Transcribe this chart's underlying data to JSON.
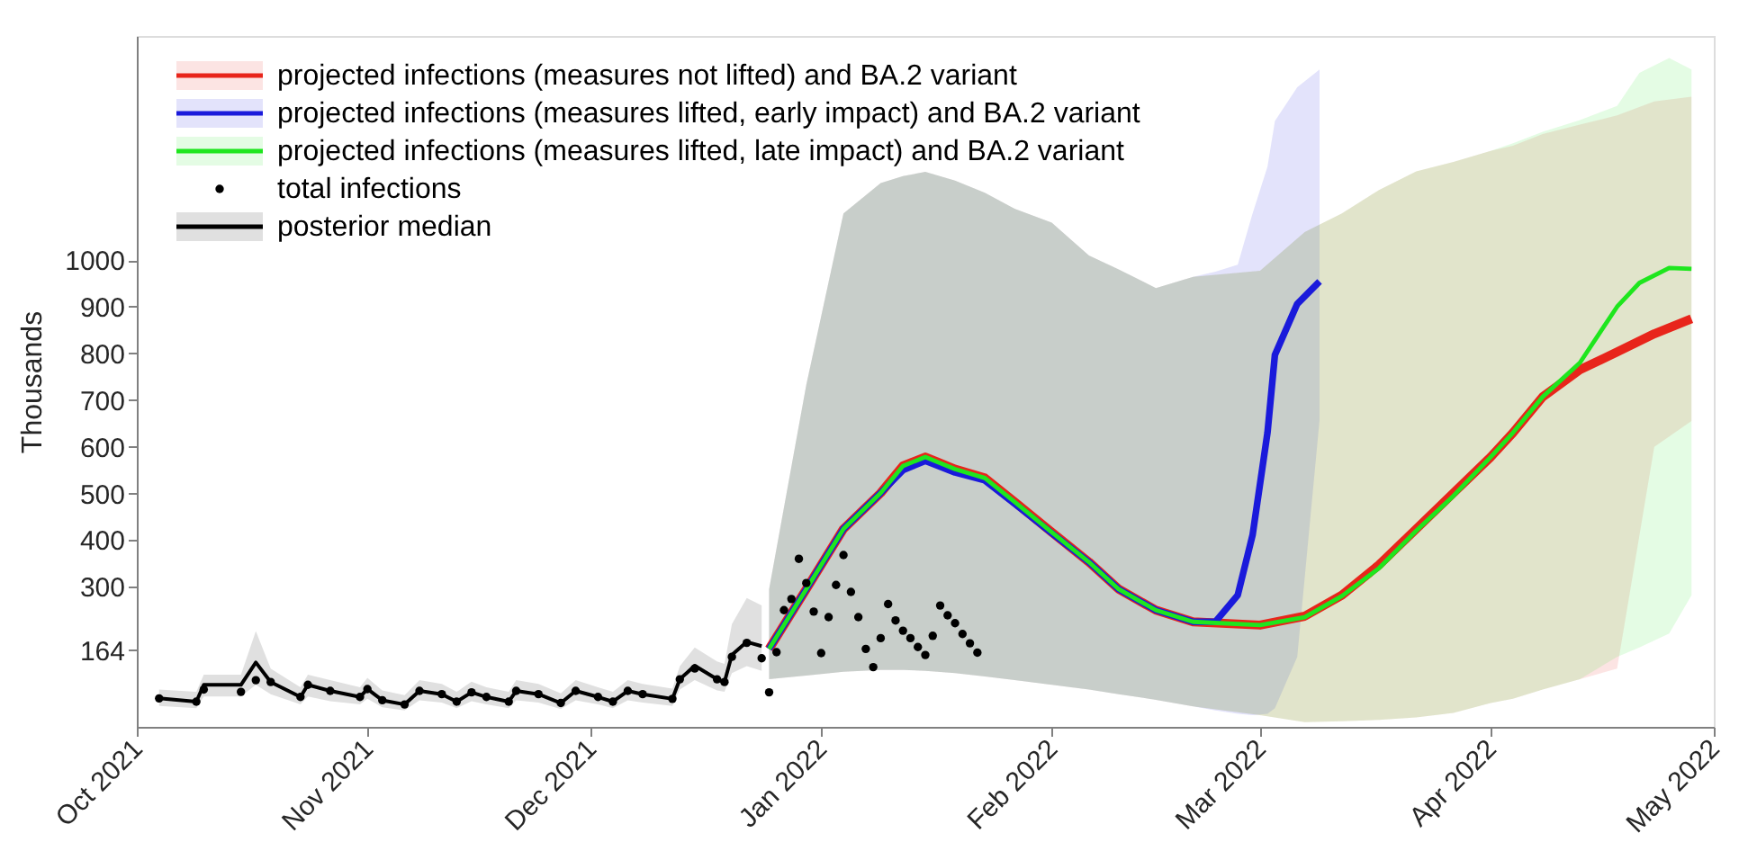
{
  "chart_data": {
    "type": "line",
    "ylabel": "Thousands",
    "legend": "top left",
    "grid": false,
    "xlim": [
      "2021-10-01",
      "2022-05-01"
    ],
    "xticks": [
      {
        "value": "2021-10-01",
        "label": "Oct 2021"
      },
      {
        "value": "2021-11-01",
        "label": "Nov 2021"
      },
      {
        "value": "2021-12-01",
        "label": "Dec 2021"
      },
      {
        "value": "2022-01-01",
        "label": "Jan 2022"
      },
      {
        "value": "2022-02-01",
        "label": "Feb 2022"
      },
      {
        "value": "2022-03-01",
        "label": "Mar 2022"
      },
      {
        "value": "2022-04-01",
        "label": "Apr 2022"
      },
      {
        "value": "2022-05-01",
        "label": "May 2022"
      }
    ],
    "ylim": [
      0,
      1480
    ],
    "yticks": [
      164,
      300,
      400,
      500,
      600,
      700,
      800,
      900,
      1000
    ],
    "series": [
      {
        "name": "projected infections (measures not lifted) and BA.2 variant",
        "type": "line",
        "color": "#e8251b",
        "x": [
          "2021-12-25",
          "2021-12-30",
          "2022-01-04",
          "2022-01-09",
          "2022-01-12",
          "2022-01-15",
          "2022-01-19",
          "2022-01-23",
          "2022-01-27",
          "2022-02-01",
          "2022-02-06",
          "2022-02-10",
          "2022-02-15",
          "2022-02-20",
          "2022-03-01",
          "2022-03-07",
          "2022-03-12",
          "2022-03-17",
          "2022-03-22",
          "2022-03-27",
          "2022-04-01",
          "2022-04-04",
          "2022-04-08",
          "2022-04-13",
          "2022-04-18",
          "2022-04-23",
          "2022-04-28"
        ],
        "values": [
          167,
          295,
          424,
          501,
          559,
          578,
          552,
          533,
          482,
          417,
          353,
          295,
          250,
          225,
          218,
          237,
          282,
          347,
          424,
          501,
          578,
          630,
          707,
          765,
          803,
          842,
          874
        ],
        "lower": [
          102,
          110,
          118,
          122,
          122,
          120,
          115,
          108,
          100,
          90,
          80,
          70,
          58,
          44,
          25,
          10,
          12,
          15,
          20,
          30,
          51,
          60,
          80,
          102,
          125,
          600,
          655
        ],
        "upper": [
          295,
          733,
          1100,
          1165,
          1180,
          1189,
          1170,
          1144,
          1110,
          1080,
          1010,
          980,
          940,
          964,
          977,
          1060,
          1100,
          1150,
          1190,
          1210,
          1234,
          1245,
          1270,
          1290,
          1310,
          1340,
          1350
        ]
      },
      {
        "name": "projected infections (measures lifted, early impact) and BA.2 variant",
        "type": "line",
        "color": "#1a1adb",
        "x": [
          "2021-12-25",
          "2021-12-30",
          "2022-01-04",
          "2022-01-09",
          "2022-01-12",
          "2022-01-15",
          "2022-01-19",
          "2022-01-23",
          "2022-01-27",
          "2022-02-01",
          "2022-02-06",
          "2022-02-10",
          "2022-02-15",
          "2022-02-20",
          "2022-02-23",
          "2022-02-26",
          "2022-02-28",
          "2022-03-02",
          "2022-03-03",
          "2022-03-06",
          "2022-03-09"
        ],
        "values": [
          167,
          295,
          424,
          501,
          550,
          570,
          545,
          528,
          478,
          415,
          353,
          295,
          250,
          225,
          225,
          282,
          411,
          630,
          797,
          906,
          954
        ],
        "lower": [
          102,
          110,
          118,
          122,
          122,
          120,
          115,
          108,
          100,
          90,
          80,
          70,
          58,
          44,
          35,
          28,
          25,
          28,
          40,
          150,
          657
        ],
        "upper": [
          295,
          733,
          1100,
          1165,
          1180,
          1189,
          1170,
          1144,
          1110,
          1080,
          1010,
          980,
          940,
          964,
          975,
          990,
          1100,
          1200,
          1298,
          1370,
          1408
        ]
      },
      {
        "name": "projected infections (measures lifted, late impact) and BA.2 variant",
        "type": "line",
        "color": "#1ee61e",
        "x": [
          "2021-12-25",
          "2021-12-30",
          "2022-01-04",
          "2022-01-09",
          "2022-01-12",
          "2022-01-15",
          "2022-01-19",
          "2022-01-23",
          "2022-01-27",
          "2022-02-01",
          "2022-02-06",
          "2022-02-10",
          "2022-02-15",
          "2022-02-20",
          "2022-03-01",
          "2022-03-07",
          "2022-03-12",
          "2022-03-17",
          "2022-03-22",
          "2022-03-27",
          "2022-04-01",
          "2022-04-04",
          "2022-04-08",
          "2022-04-13",
          "2022-04-18",
          "2022-04-21",
          "2022-04-25",
          "2022-04-28"
        ],
        "values": [
          167,
          295,
          424,
          501,
          559,
          578,
          552,
          533,
          482,
          417,
          353,
          295,
          250,
          225,
          218,
          235,
          280,
          340,
          420,
          495,
          578,
          630,
          707,
          780,
          900,
          951,
          983,
          981
        ],
        "lower": [
          102,
          110,
          118,
          122,
          122,
          120,
          115,
          108,
          100,
          90,
          80,
          70,
          58,
          44,
          25,
          10,
          12,
          15,
          20,
          30,
          51,
          60,
          80,
          102,
          150,
          170,
          200,
          282
        ],
        "upper": [
          295,
          733,
          1100,
          1165,
          1180,
          1189,
          1170,
          1144,
          1110,
          1080,
          1010,
          980,
          940,
          964,
          977,
          1060,
          1100,
          1150,
          1190,
          1210,
          1234,
          1250,
          1275,
          1300,
          1330,
          1401,
          1433,
          1408
        ]
      },
      {
        "name": "total infections",
        "type": "scatter",
        "marker": "circle",
        "color": "#000000",
        "x": [
          "2021-10-04",
          "2021-10-09",
          "2021-10-10",
          "2021-10-15",
          "2021-10-17",
          "2021-10-19",
          "2021-10-23",
          "2021-10-24",
          "2021-10-27",
          "2021-10-31",
          "2021-11-01",
          "2021-11-03",
          "2021-11-06",
          "2021-11-08",
          "2021-11-11",
          "2021-11-13",
          "2021-11-15",
          "2021-11-17",
          "2021-11-20",
          "2021-11-21",
          "2021-11-24",
          "2021-11-27",
          "2021-11-29",
          "2021-12-02",
          "2021-12-04",
          "2021-12-06",
          "2021-12-08",
          "2021-12-12",
          "2021-12-13",
          "2021-12-15",
          "2021-12-18",
          "2021-12-19",
          "2021-12-20",
          "2021-12-22",
          "2021-12-24",
          "2021-12-25",
          "2021-12-26",
          "2021-12-27",
          "2021-12-28",
          "2021-12-29",
          "2021-12-30",
          "2021-12-31",
          "2022-01-01",
          "2022-01-02",
          "2022-01-03",
          "2022-01-04",
          "2022-01-05",
          "2022-01-06",
          "2022-01-07",
          "2022-01-08",
          "2022-01-09",
          "2022-01-10",
          "2022-01-11",
          "2022-01-12",
          "2022-01-13",
          "2022-01-14",
          "2022-01-15",
          "2022-01-16",
          "2022-01-17",
          "2022-01-18",
          "2022-01-19",
          "2022-01-20",
          "2022-01-21",
          "2022-01-22"
        ],
        "values": [
          61,
          54,
          80,
          75,
          100,
          96,
          64,
          90,
          77,
          64,
          81,
          57,
          48,
          77,
          70,
          54,
          74,
          64,
          54,
          77,
          70,
          51,
          77,
          64,
          54,
          77,
          70,
          60,
          102,
          125,
          102,
          96,
          150,
          180,
          147,
          74,
          160,
          250,
          274,
          360,
          308,
          247,
          158,
          235,
          304,
          368,
          289,
          235,
          167,
          128,
          190,
          263,
          228,
          206,
          190,
          171,
          154,
          195,
          260,
          239,
          222,
          199,
          179,
          159
        ]
      },
      {
        "name": "posterior median",
        "type": "line",
        "color": "#000000",
        "x": [
          "2021-10-04",
          "2021-10-09",
          "2021-10-10",
          "2021-10-15",
          "2021-10-17",
          "2021-10-19",
          "2021-10-23",
          "2021-10-24",
          "2021-10-27",
          "2021-10-31",
          "2021-11-01",
          "2021-11-03",
          "2021-11-06",
          "2021-11-08",
          "2021-11-11",
          "2021-11-13",
          "2021-11-15",
          "2021-11-17",
          "2021-11-20",
          "2021-11-21",
          "2021-11-24",
          "2021-11-27",
          "2021-11-29",
          "2021-12-02",
          "2021-12-04",
          "2021-12-06",
          "2021-12-08",
          "2021-12-12",
          "2021-12-13",
          "2021-12-15",
          "2021-12-18",
          "2021-12-19",
          "2021-12-20",
          "2021-12-22",
          "2021-12-24"
        ],
        "values": [
          61,
          54,
          90,
          90,
          138,
          96,
          64,
          90,
          77,
          64,
          81,
          57,
          48,
          77,
          70,
          54,
          74,
          64,
          54,
          77,
          70,
          51,
          77,
          64,
          54,
          77,
          70,
          60,
          102,
          131,
          102,
          96,
          154,
          182,
          173
        ],
        "lower": [
          45,
          40,
          65,
          65,
          90,
          70,
          48,
          65,
          55,
          48,
          60,
          42,
          35,
          57,
          52,
          40,
          55,
          48,
          40,
          57,
          52,
          38,
          57,
          48,
          40,
          57,
          52,
          45,
          80,
          100,
          78,
          75,
          115,
          130,
          120
        ],
        "upper": [
          80,
          75,
          112,
          112,
          205,
          125,
          85,
          112,
          100,
          85,
          105,
          78,
          68,
          100,
          92,
          75,
          97,
          85,
          75,
          100,
          92,
          72,
          100,
          85,
          75,
          100,
          92,
          82,
          130,
          170,
          140,
          135,
          220,
          276,
          260
        ]
      }
    ]
  }
}
